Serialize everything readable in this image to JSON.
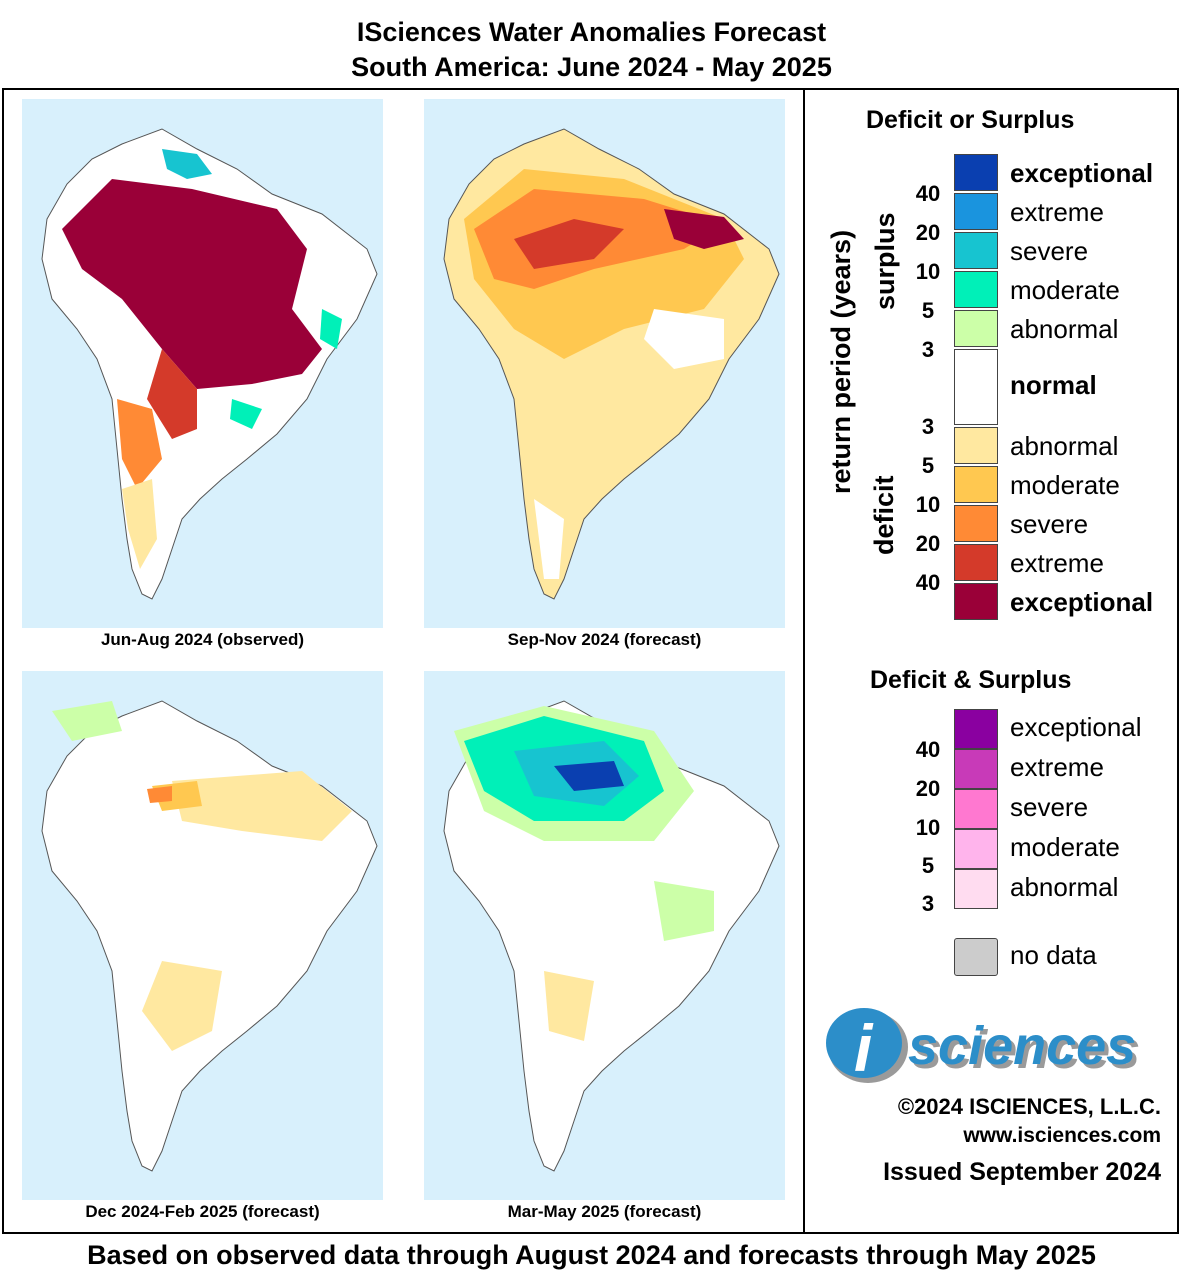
{
  "title": {
    "line1": "ISciences Water Anomalies Forecast",
    "line2": "South America: June 2024 - May 2025"
  },
  "maps": [
    {
      "caption": "Jun-Aug 2024 (observed)"
    },
    {
      "caption": "Sep-Nov 2024 (forecast)"
    },
    {
      "caption": "Dec 2024-Feb 2025 (forecast)"
    },
    {
      "caption": "Mar-May 2025 (forecast)"
    }
  ],
  "legend": {
    "deficit_or_surplus_title": "Deficit or Surplus",
    "axis_label": "return period (years)",
    "surplus_label": "surplus",
    "deficit_label": "deficit",
    "surplus_classes": [
      {
        "label": "exceptional",
        "color": "#0a3fb0"
      },
      {
        "label": "extreme",
        "color": "#1a94de"
      },
      {
        "label": "severe",
        "color": "#17c4d0"
      },
      {
        "label": "moderate",
        "color": "#00f0b8"
      },
      {
        "label": "abnormal",
        "color": "#ccffa8"
      }
    ],
    "normal": {
      "label": "normal",
      "color": "#ffffff"
    },
    "deficit_classes": [
      {
        "label": "abnormal",
        "color": "#ffe8a0"
      },
      {
        "label": "moderate",
        "color": "#ffc850"
      },
      {
        "label": "severe",
        "color": "#ff8a35"
      },
      {
        "label": "extreme",
        "color": "#d43a2a"
      },
      {
        "label": "exceptional",
        "color": "#9a0038"
      }
    ],
    "surplus_return_periods": [
      "40",
      "20",
      "10",
      "5",
      "3"
    ],
    "deficit_return_periods": [
      "3",
      "5",
      "10",
      "20",
      "40"
    ],
    "deficit_and_surplus_title": "Deficit & Surplus",
    "both_classes": [
      {
        "label": "exceptional",
        "color": "#8a00a0"
      },
      {
        "label": "extreme",
        "color": "#c83ab8"
      },
      {
        "label": "severe",
        "color": "#ff78d0"
      },
      {
        "label": "moderate",
        "color": "#ffb4ec"
      },
      {
        "label": "abnormal",
        "color": "#ffdcf0"
      }
    ],
    "both_return_periods": [
      "40",
      "20",
      "10",
      "5",
      "3"
    ],
    "no_data": {
      "label": "no data",
      "color": "#cccccc"
    }
  },
  "logo": {
    "letter": "i",
    "text": "sciences"
  },
  "copyright": "©2024 ISCIENCES, L.L.C.",
  "website": "www.isciences.com",
  "issued": "Issued September 2024",
  "footer": "Based on observed data through August 2024 and forecasts through May 2025"
}
